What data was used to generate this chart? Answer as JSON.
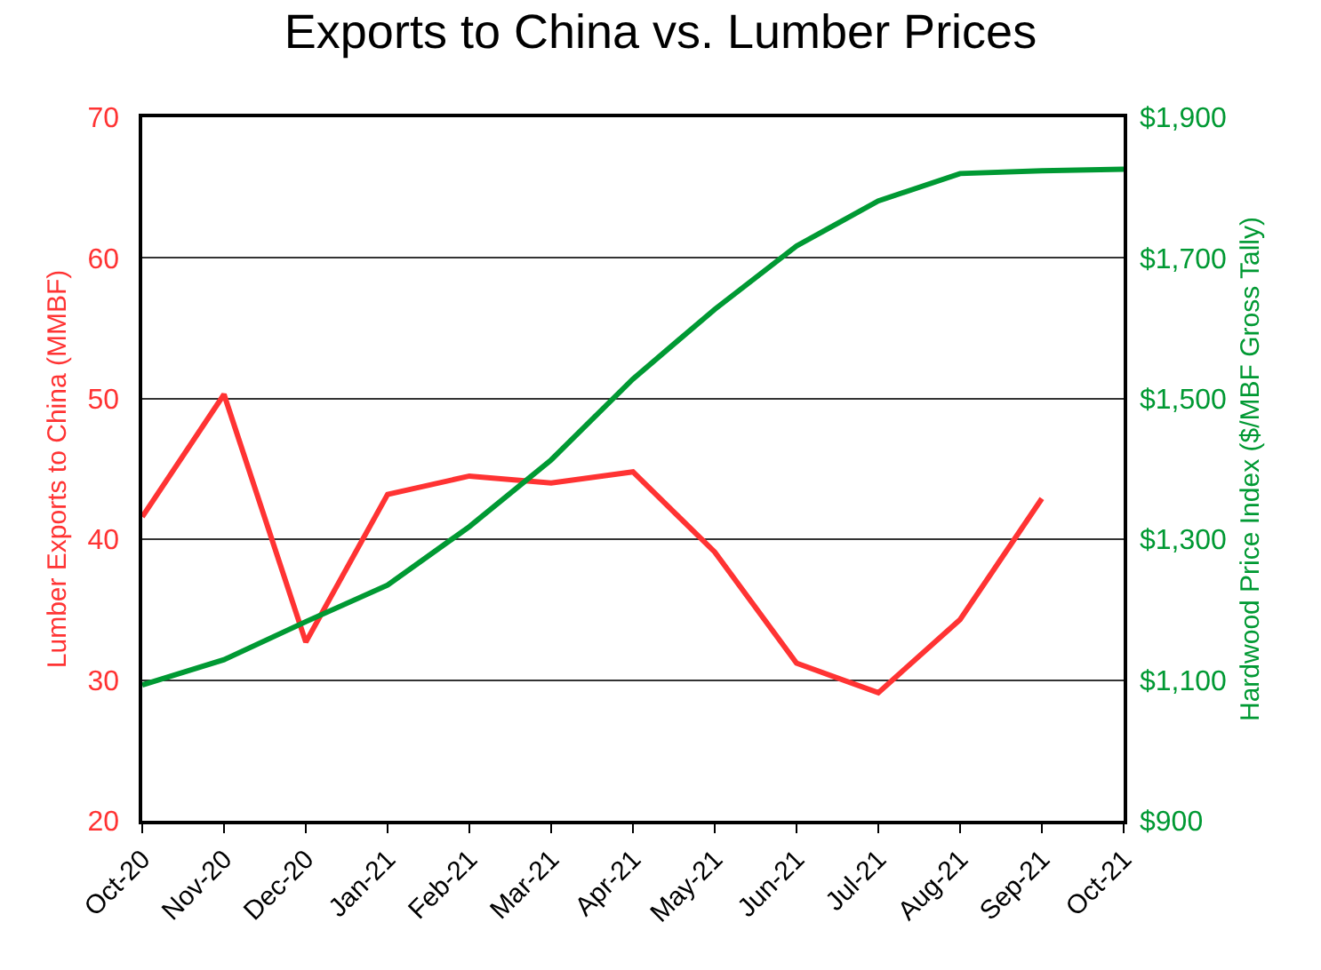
{
  "chart_data": {
    "type": "line",
    "title": "Exports to China vs. Lumber Prices",
    "ylabel": "Lumber Exports to China (MMBF)",
    "y2label": "Hardwood Price Index ($/MBF Gross Tally)",
    "categories": [
      "Oct-20",
      "Nov-20",
      "Dec-20",
      "Jan-21",
      "Feb-21",
      "Mar-21",
      "Apr-21",
      "May-21",
      "Jun-21",
      "Jul-21",
      "Aug-21",
      "Sep-21",
      "Oct-21"
    ],
    "series": [
      {
        "color": "#ff3333",
        "values": [
          41.6,
          50.3,
          32.7,
          43.2,
          44.5,
          44.0,
          44.8,
          39.1,
          31.2,
          29.1,
          34.3,
          42.9,
          null
        ]
      },
      {
        "color": "#009933",
        "axis": "y2",
        "values": [
          1093,
          1129,
          1183,
          1235,
          1318,
          1413,
          1528,
          1627,
          1717,
          1781,
          1820,
          1824,
          1826
        ]
      }
    ],
    "ylim": [
      20,
      70
    ],
    "yticks": [
      20,
      30,
      40,
      50,
      60,
      70
    ],
    "y2lim": [
      900,
      1900
    ],
    "y2ticks": [
      {
        "value": 900,
        "label": "$900"
      },
      {
        "value": 1100,
        "label": "$1,100"
      },
      {
        "value": 1300,
        "label": "$1,300"
      },
      {
        "value": 1500,
        "label": "$1,500"
      },
      {
        "value": 1700,
        "label": "$1,700"
      },
      {
        "value": 1900,
        "label": "$1,900"
      }
    ],
    "grid": "y",
    "line_style": "solid",
    "marker": "none"
  }
}
